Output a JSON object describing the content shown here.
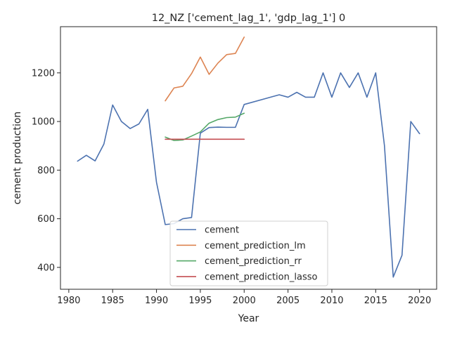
{
  "chart_data": {
    "type": "line",
    "title": "12_NZ ['cement_lag_1', 'gdp_lag_1'] 0",
    "xlabel": "Year",
    "ylabel": "cement production",
    "xlim": [
      1979.05,
      2021.95
    ],
    "ylim": [
      310,
      1390
    ],
    "xticks": [
      1980,
      1985,
      1990,
      1995,
      2000,
      2005,
      2010,
      2015,
      2020
    ],
    "yticks": [
      400,
      600,
      800,
      1000,
      1200
    ],
    "grid": false,
    "legend_position": "lower-center",
    "series": [
      {
        "name": "cement",
        "color": "#4c72b0",
        "x": [
          1981,
          1982,
          1983,
          1984,
          1985,
          1986,
          1987,
          1988,
          1989,
          1990,
          1991,
          1992,
          1993,
          1994,
          1995,
          1996,
          1997,
          1998,
          1999,
          2000,
          2004,
          2005,
          2006,
          2007,
          2008,
          2009,
          2010,
          2011,
          2012,
          2013,
          2014,
          2015,
          2016,
          2017,
          2018,
          2019,
          2020
        ],
        "y": [
          837,
          861,
          838,
          907,
          1068,
          1000,
          971,
          990,
          1050,
          750,
          576,
          580,
          600,
          605,
          952,
          975,
          977,
          976,
          976,
          1070,
          1110,
          1100,
          1120,
          1100,
          1100,
          1200,
          1100,
          1200,
          1140,
          1200,
          1100,
          1200,
          900,
          360,
          450,
          1000,
          950
        ]
      },
      {
        "name": "cement_prediction_lm",
        "color": "#dd8452",
        "x": [
          1991,
          1992,
          1993,
          1994,
          1995,
          1996,
          1997,
          1998,
          1999,
          2000
        ],
        "y": [
          1085,
          1138,
          1145,
          1197,
          1265,
          1194,
          1240,
          1275,
          1280,
          1347
        ]
      },
      {
        "name": "cement_prediction_rr",
        "color": "#55a868",
        "x": [
          1991,
          1992,
          1993,
          1994,
          1995,
          1996,
          1997,
          1998,
          1999,
          2000
        ],
        "y": [
          936,
          922,
          924,
          940,
          957,
          993,
          1008,
          1016,
          1018,
          1034
        ]
      },
      {
        "name": "cement_prediction_lasso",
        "color": "#c44e52",
        "x": [
          1991,
          1992,
          1993,
          1994,
          1995,
          1996,
          1997,
          1998,
          1999,
          2000
        ],
        "y": [
          927,
          927,
          927,
          927,
          927,
          927,
          927,
          927,
          927,
          927
        ]
      }
    ]
  }
}
